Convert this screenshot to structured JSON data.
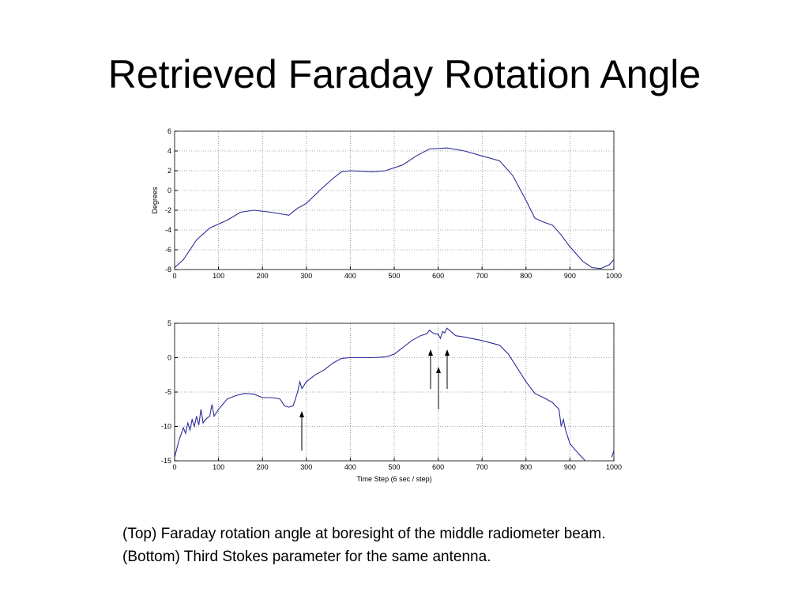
{
  "slide": {
    "title": "Retrieved Faraday Rotation Angle",
    "caption": [
      "(Top) Faraday rotation angle at boresight of the middle radiometer beam.",
      "(Bottom) Third Stokes parameter for the same antenna."
    ]
  },
  "chart_data": [
    {
      "type": "line",
      "ylabel": "Degrees",
      "color": "#2b2b9a",
      "grid": true,
      "xlim": [
        0,
        1000
      ],
      "xticks": [
        0,
        100,
        200,
        300,
        400,
        500,
        600,
        700,
        800,
        900,
        1000
      ],
      "ylim": [
        -8,
        6
      ],
      "yticks": [
        -8,
        -6,
        -4,
        -2,
        0,
        2,
        4,
        6
      ],
      "x": [
        0,
        20,
        50,
        80,
        120,
        150,
        180,
        220,
        260,
        280,
        300,
        330,
        360,
        380,
        400,
        450,
        480,
        520,
        550,
        580,
        620,
        660,
        700,
        740,
        770,
        800,
        820,
        840,
        860,
        880,
        900,
        930,
        950,
        970,
        990,
        1000
      ],
      "values": [
        -7.8,
        -7,
        -5,
        -3.8,
        -3,
        -2.2,
        -2,
        -2.2,
        -2.5,
        -1.8,
        -1.3,
        0,
        1.2,
        1.9,
        2,
        1.9,
        2,
        2.6,
        3.5,
        4.2,
        4.3,
        4,
        3.5,
        3,
        1.5,
        -1,
        -2.8,
        -3.2,
        -3.5,
        -4.5,
        -5.7,
        -7.2,
        -7.8,
        -7.9,
        -7.5,
        -7
      ]
    },
    {
      "type": "line",
      "xlabel": "Time Step (6 sec / step)",
      "color": "#2b2b9a",
      "grid": true,
      "xlim": [
        0,
        1000
      ],
      "xticks": [
        0,
        100,
        200,
        300,
        400,
        500,
        600,
        700,
        800,
        900,
        1000
      ],
      "ylim": [
        -15,
        5
      ],
      "yticks": [
        -15,
        -10,
        -5,
        0,
        5
      ],
      "x": [
        0,
        10,
        20,
        25,
        30,
        35,
        40,
        45,
        50,
        55,
        60,
        65,
        70,
        80,
        85,
        90,
        100,
        120,
        140,
        160,
        180,
        200,
        220,
        240,
        250,
        260,
        270,
        280,
        285,
        290,
        300,
        320,
        340,
        360,
        380,
        400,
        450,
        480,
        500,
        520,
        540,
        560,
        575,
        580,
        590,
        600,
        605,
        610,
        615,
        620,
        640,
        660,
        700,
        740,
        760,
        780,
        800,
        820,
        840,
        860,
        875,
        880,
        885,
        890,
        900,
        920,
        935,
        960,
        995,
        1000
      ],
      "values": [
        -14.5,
        -12,
        -10.2,
        -11,
        -9.5,
        -10.5,
        -9,
        -10,
        -8.5,
        -9.8,
        -7.5,
        -9.5,
        -9,
        -8.5,
        -6.8,
        -8.5,
        -7.5,
        -6,
        -5.5,
        -5.2,
        -5.3,
        -5.8,
        -5.8,
        -6,
        -7,
        -7.2,
        -7,
        -5,
        -3.5,
        -4.5,
        -3.5,
        -2.5,
        -1.8,
        -0.8,
        -0.1,
        0,
        0,
        0.1,
        0.5,
        1.5,
        2.5,
        3.2,
        3.5,
        4,
        3.5,
        3.4,
        2.8,
        3.8,
        3.6,
        4.3,
        3.2,
        3,
        2.5,
        1.8,
        0.5,
        -1.5,
        -3.5,
        -5.2,
        -5.8,
        -6.5,
        -7.5,
        -10,
        -9,
        -10.5,
        -12.5,
        -14,
        -15,
        null,
        -14.5,
        -13.5
      ]
    }
  ]
}
